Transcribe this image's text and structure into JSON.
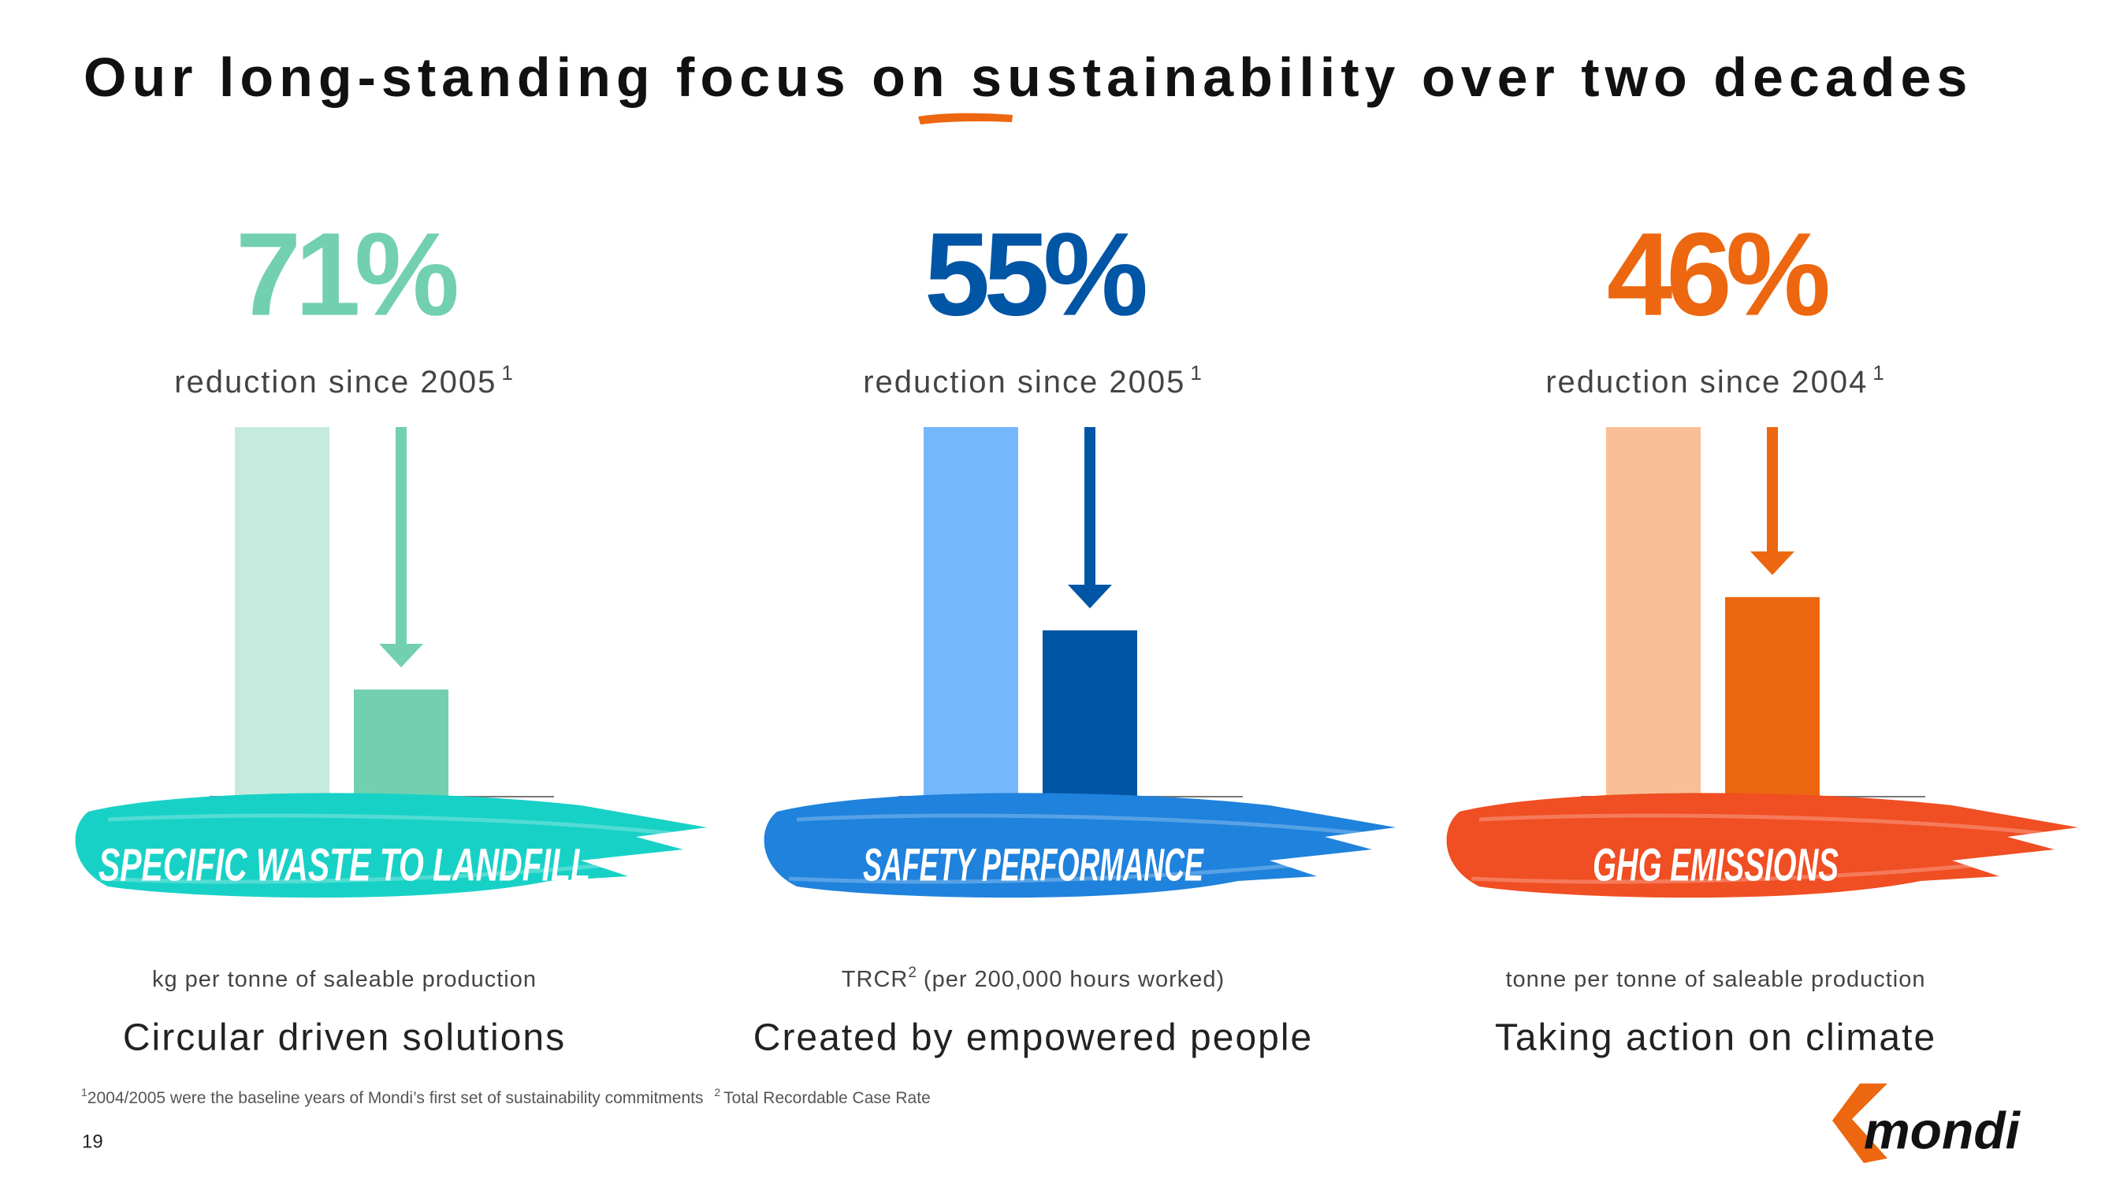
{
  "title": "Our long-standing focus on sustainability over two decades",
  "chart_data": [
    {
      "type": "bar",
      "headline": "71%",
      "subtitle": "reduction since 2005",
      "subtitle_mark": "1",
      "label": "SPECIFIC WASTE TO LANDFILL",
      "unit": "kg per tonne of saleable production",
      "tagline": "Circular driven solutions",
      "categories": [
        null,
        null
      ],
      "values": [
        100,
        29
      ],
      "colors": [
        "#c6eadd",
        "#72d0b0"
      ],
      "headline_color": "#72d0b0",
      "brush_color": "#18d1c6",
      "ylim": [
        0,
        100
      ]
    },
    {
      "type": "bar",
      "headline": "55%",
      "subtitle": "reduction since 2005",
      "subtitle_mark": "1",
      "label": "SAFETY PERFORMANCE",
      "unit": "TRCR",
      "unit_mark": "2",
      "unit_rest": "(per 200,000 hours worked)",
      "tagline": "Created by empowered people",
      "categories": [
        null,
        null
      ],
      "values": [
        100,
        45
      ],
      "colors": [
        "#74b8fb",
        "#0055a5"
      ],
      "headline_color": "#0055a5",
      "brush_color": "#1f82dc",
      "ylim": [
        0,
        100
      ]
    },
    {
      "type": "bar",
      "headline": "46%",
      "subtitle": "reduction since 2004",
      "subtitle_mark": "1",
      "label": "GHG EMISSIONS",
      "unit": "tonne per tonne of saleable production",
      "tagline": "Taking action on climate",
      "categories": [
        null,
        null
      ],
      "values": [
        100,
        54
      ],
      "colors": [
        "#f9bf96",
        "#ec670f"
      ],
      "headline_color": "#ec670f",
      "brush_color": "#f04e23",
      "ylim": [
        0,
        100
      ]
    }
  ],
  "footnotes": [
    {
      "mark": "1",
      "text": "2004/2005 were the baseline years of Mondi’s first set of sustainability commitments"
    },
    {
      "mark": "2",
      "text": "Total Recordable Case Rate"
    }
  ],
  "page_number": "19",
  "logo": "mondi"
}
